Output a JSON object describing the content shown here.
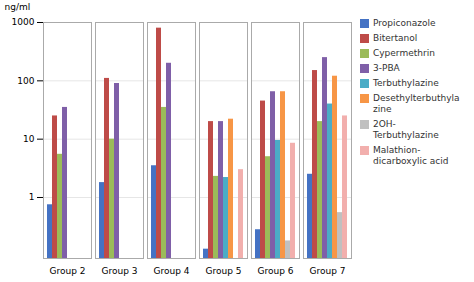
{
  "chart_data": {
    "type": "bar",
    "categories": [
      "Group 2",
      "Group 3",
      "Group 4",
      "Group 5",
      "Group 6",
      "Group 7"
    ],
    "series": [
      {
        "name": "Propiconazole",
        "color": "#4472C4",
        "values": [
          0.75,
          1.8,
          3.5,
          0.13,
          0.28,
          2.5
        ]
      },
      {
        "name": "Bitertanol",
        "color": "#BE4B48",
        "values": [
          25,
          110,
          800,
          20,
          45,
          150
        ]
      },
      {
        "name": "Cypermethrin",
        "color": "#9BBB59",
        "values": [
          5.5,
          10,
          35,
          2.3,
          5.0,
          20
        ]
      },
      {
        "name": "3-PBA",
        "color": "#7F5FA8",
        "values": [
          35,
          90,
          200,
          20,
          65,
          250
        ]
      },
      {
        "name": "Terbuthylazine",
        "color": "#4BACC6",
        "values": [
          null,
          null,
          null,
          2.2,
          9.5,
          40
        ]
      },
      {
        "name": "Desethylterbuthyla\nzine",
        "color": "#F79646",
        "values": [
          null,
          null,
          null,
          22,
          65,
          120
        ]
      },
      {
        "name": "2OH-\nTerbuthylazine",
        "color": "#C0C0C0",
        "values": [
          null,
          null,
          null,
          null,
          0.18,
          0.55
        ]
      },
      {
        "name": "Malathion-\ndicarboxylic acid",
        "color": "#F2AFAD",
        "values": [
          null,
          null,
          null,
          3.0,
          8.5,
          25
        ]
      }
    ],
    "ylabel": "ng/ml",
    "ylim": [
      0.09,
      1000
    ],
    "yticks": [
      1,
      10,
      100,
      1000
    ],
    "log": "y",
    "grid": true,
    "legend": "right"
  }
}
